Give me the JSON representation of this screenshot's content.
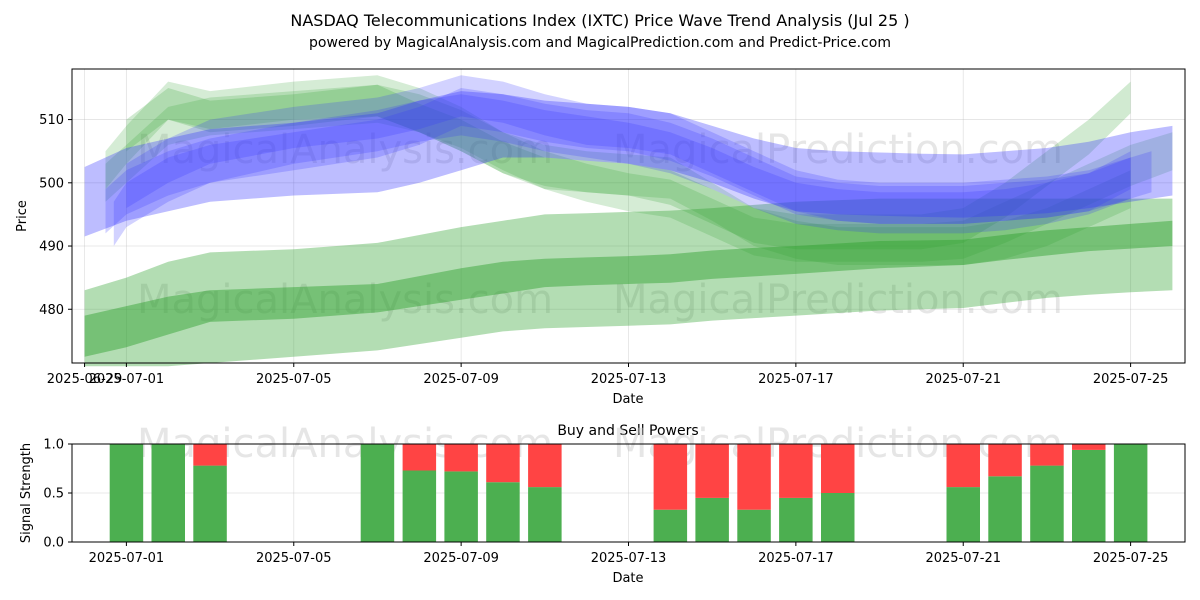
{
  "chart_data": [
    {
      "type": "area",
      "title": "NASDAQ Telecommunications Index (IXTC) Price Wave Trend Analysis (Jul 25 )",
      "subtitle": "powered by MagicalAnalysis.com and MagicalPrediction.com and Predict-Price.com",
      "xlabel": "Date",
      "ylabel": "Price",
      "xlim": [
        -0.3,
        26.3
      ],
      "ylim": [
        471.5,
        518.0
      ],
      "x_ticks": [
        0,
        1,
        5,
        9,
        13,
        17,
        21,
        25
      ],
      "x_tick_labels": [
        "2025-06-29",
        "2025-07-01",
        "2025-07-05",
        "2025-07-09",
        "2025-07-13",
        "2025-07-17",
        "2025-07-21",
        "2025-07-25"
      ],
      "y_ticks": [
        480,
        490,
        500,
        510
      ],
      "grid": true,
      "watermarks": [
        "MagicalAnalysis.com",
        "MagicalPrediction.com",
        "MagicalAnalysis.com",
        "MagicalPrediction.com"
      ],
      "series": [
        {
          "name": "wide-green-channel",
          "color": "#2ca02c",
          "opacity": 0.36,
          "x": [
            0,
            1,
            2,
            3,
            5,
            7,
            9,
            10,
            11,
            12,
            13,
            14,
            15,
            16,
            17,
            19,
            21,
            22,
            23,
            24,
            25,
            26
          ],
          "upper": [
            483,
            485,
            487.5,
            489,
            489.5,
            490.5,
            493,
            494,
            495,
            495.2,
            495.4,
            495.6,
            496,
            496.5,
            497,
            497.5,
            497.5,
            497.5,
            497.5,
            497.5,
            497.5,
            497.5
          ],
          "lower": [
            471,
            471,
            471,
            471.5,
            472.5,
            473.5,
            475.5,
            476.5,
            477,
            477.2,
            477.4,
            477.6,
            478.2,
            478.6,
            479,
            479.8,
            480.2,
            481,
            481.8,
            482.3,
            482.7,
            483
          ]
        },
        {
          "name": "green-trend-band",
          "color": "#2ca02c",
          "opacity": 0.45,
          "x": [
            0,
            1,
            2,
            3,
            5,
            7,
            9,
            10,
            11,
            12,
            13,
            14,
            15,
            16,
            17,
            19,
            21,
            22,
            23,
            24,
            25,
            26
          ],
          "upper": [
            479,
            480.5,
            482,
            483,
            483.5,
            484,
            486.5,
            487.5,
            488,
            488.2,
            488.4,
            488.7,
            489.3,
            489.7,
            490,
            490.8,
            491,
            491.8,
            492.5,
            493,
            493.5,
            494
          ],
          "lower": [
            472.5,
            474,
            476,
            478,
            478.5,
            479.5,
            481.5,
            482.5,
            483.5,
            483.8,
            484,
            484.2,
            484.8,
            485.2,
            485.6,
            486.5,
            487,
            487.8,
            488.5,
            489.2,
            489.6,
            490
          ]
        },
        {
          "name": "green-wave-1",
          "color": "#2ca02c",
          "opacity": 0.2,
          "x": [
            0.5,
            1,
            2,
            3,
            5,
            7,
            8,
            9,
            10,
            11,
            12,
            13,
            14,
            15,
            16,
            17,
            18,
            19,
            20,
            21,
            22,
            23,
            24,
            25
          ],
          "upper": [
            505,
            509,
            516,
            514.5,
            516,
            517,
            515,
            512,
            508,
            506,
            505,
            504.5,
            504,
            500,
            496,
            494,
            493,
            493,
            493,
            493,
            494,
            496,
            499,
            502
          ],
          "lower": [
            499,
            503,
            510,
            508.5,
            510,
            510.5,
            508,
            505,
            501.5,
            499.5,
            498.5,
            498,
            497.5,
            494,
            490,
            488,
            487,
            487,
            487,
            487,
            488,
            490,
            493,
            496
          ]
        },
        {
          "name": "green-wave-2",
          "color": "#2ca02c",
          "opacity": 0.22,
          "x": [
            1,
            2,
            3,
            5,
            7,
            8,
            9,
            10,
            11,
            12,
            13,
            14,
            15,
            16,
            17,
            18,
            19,
            20,
            21,
            22,
            23,
            24,
            25
          ],
          "upper": [
            510,
            515,
            513,
            514,
            515.5,
            512.5,
            510,
            506.5,
            504,
            503.5,
            503,
            502,
            499,
            496,
            495,
            495,
            495,
            495,
            496,
            500,
            505,
            510,
            516
          ],
          "lower": [
            505,
            510,
            508,
            509,
            510.5,
            508,
            505,
            501.5,
            499,
            498.5,
            498,
            496.5,
            493.5,
            490.5,
            489.5,
            489.5,
            489.5,
            489.5,
            490.5,
            494.5,
            499.5,
            504.5,
            511
          ]
        },
        {
          "name": "green-wave-3",
          "color": "#2ca02c",
          "opacity": 0.2,
          "x": [
            0.5,
            1,
            2,
            3,
            5,
            7,
            8,
            9,
            10,
            11,
            12,
            13,
            14,
            15,
            16,
            17,
            18,
            19,
            20,
            21,
            22,
            23,
            24,
            25,
            26
          ],
          "upper": [
            503,
            506,
            512,
            513.5,
            514.5,
            515.5,
            514,
            511.5,
            508,
            505,
            503,
            501.5,
            500.5,
            497.5,
            494.5,
            493.5,
            493.5,
            493.5,
            493.5,
            494,
            497,
            500,
            503,
            506,
            508
          ],
          "lower": [
            497,
            500,
            506,
            507.5,
            508.5,
            509.5,
            508,
            505.5,
            502,
            499,
            497,
            495.5,
            494.5,
            491.5,
            488.5,
            487.5,
            487.5,
            487.5,
            487.5,
            488,
            490.5,
            493.5,
            496.5,
            499.5,
            502
          ]
        },
        {
          "name": "blue-trend-channel",
          "color": "#3333ff",
          "opacity": 0.32,
          "x": [
            0,
            1,
            2,
            3,
            5,
            7,
            8,
            9,
            10,
            11,
            12,
            13,
            14,
            15,
            16,
            17,
            18,
            19,
            20,
            21,
            22,
            23,
            24,
            25,
            26
          ],
          "upper": [
            502.5,
            505.5,
            507,
            508.5,
            509.5,
            511,
            513,
            514.5,
            514,
            513,
            512.5,
            512,
            511,
            509,
            507,
            505.5,
            505,
            504.8,
            504.6,
            504.5,
            505,
            505.5,
            506.5,
            508,
            509
          ],
          "lower": [
            491.5,
            494,
            495.5,
            497,
            498,
            498.5,
            500,
            502,
            504,
            504,
            503.5,
            503,
            502,
            500,
            497.5,
            495.5,
            495,
            494.8,
            494.6,
            494.5,
            494.8,
            495.2,
            496,
            497,
            498
          ]
        },
        {
          "name": "blue-wave-1",
          "color": "#3333ff",
          "opacity": 0.22,
          "x": [
            0.7,
            1,
            2,
            3,
            5,
            7,
            8,
            9,
            10,
            11,
            12,
            13,
            14,
            15,
            16,
            17,
            18,
            19,
            20,
            21,
            22,
            23,
            24,
            25
          ],
          "upper": [
            497,
            500,
            504,
            506,
            508,
            510,
            512,
            515,
            514,
            512.5,
            511.5,
            511,
            509.5,
            507,
            504,
            501,
            500,
            499.5,
            499.5,
            499.5,
            500,
            500.5,
            501.5,
            505
          ],
          "lower": [
            490,
            493,
            497,
            500,
            502,
            504,
            506,
            509,
            508,
            506.5,
            505.5,
            505,
            503.5,
            501,
            498,
            495,
            494,
            493.5,
            493.5,
            493.5,
            494,
            494.5,
            495.5,
            499
          ]
        },
        {
          "name": "blue-wave-2",
          "color": "#3333ff",
          "opacity": 0.22,
          "x": [
            1,
            2,
            3,
            5,
            7,
            8,
            9,
            10,
            11,
            12,
            13,
            14,
            15,
            16,
            17,
            18,
            19,
            20,
            21,
            22,
            23,
            24,
            25
          ],
          "upper": [
            503,
            507,
            510,
            512,
            513.5,
            515,
            517,
            516,
            514,
            512.5,
            512,
            511,
            508,
            505,
            502,
            500.5,
            500,
            500,
            500,
            500.5,
            501,
            502,
            504
          ],
          "lower": [
            496,
            500,
            503,
            505.5,
            507,
            508.5,
            510.5,
            509.5,
            507.5,
            506,
            505.5,
            504.5,
            501.5,
            498.5,
            495.5,
            494,
            493.5,
            493.5,
            493.5,
            494,
            494.5,
            495.5,
            497.5
          ]
        },
        {
          "name": "blue-wave-3",
          "color": "#3333ff",
          "opacity": 0.22,
          "x": [
            0.5,
            1,
            2,
            3,
            5,
            7,
            8,
            9,
            10,
            11,
            12,
            13,
            14,
            15,
            16,
            17,
            18,
            19,
            20,
            21,
            22,
            23,
            24,
            25,
            25.5
          ],
          "upper": [
            499,
            502,
            505,
            507,
            509.5,
            511.5,
            513,
            514,
            513,
            511.5,
            510.5,
            509.5,
            508,
            505.5,
            502.5,
            500,
            499,
            498.5,
            498.5,
            498.5,
            499,
            500,
            501.5,
            504,
            505
          ],
          "lower": [
            492,
            495,
            498,
            500,
            503,
            505,
            506.5,
            507.5,
            506.5,
            505,
            504,
            503,
            501.5,
            499,
            496,
            493.5,
            492.5,
            492,
            492,
            492,
            492.5,
            493.5,
            495,
            497.5,
            498.5
          ]
        }
      ]
    },
    {
      "type": "bar",
      "title": "Buy and Sell Powers",
      "xlabel": "Date",
      "ylabel": "Signal Strength",
      "xlim": [
        -0.3,
        26.3
      ],
      "ylim": [
        0,
        1.0
      ],
      "x_ticks": [
        1,
        5,
        9,
        13,
        17,
        21,
        25
      ],
      "x_tick_labels": [
        "2025-07-01",
        "2025-07-05",
        "2025-07-09",
        "2025-07-13",
        "2025-07-17",
        "2025-07-21",
        "2025-07-25"
      ],
      "y_ticks": [
        0.0,
        0.5,
        1.0
      ],
      "y_tick_labels": [
        "0.0",
        "0.5",
        "1.0"
      ],
      "grid": true,
      "watermarks": [
        "MagicalAnalysis.com",
        "MagicalPrediction.com"
      ],
      "series": [
        {
          "name": "Buy",
          "color": "#4caf50",
          "x": [
            1,
            2,
            3,
            7,
            8,
            9,
            10,
            11,
            14,
            15,
            16,
            17,
            18,
            21,
            22,
            23,
            24,
            25
          ],
          "values": [
            1.0,
            1.0,
            0.78,
            1.0,
            0.73,
            0.72,
            0.61,
            0.56,
            0.33,
            0.45,
            0.33,
            0.45,
            0.5,
            0.56,
            0.67,
            0.78,
            0.94,
            1.0
          ]
        },
        {
          "name": "Sell",
          "color": "#ff4444",
          "x": [
            1,
            2,
            3,
            7,
            8,
            9,
            10,
            11,
            14,
            15,
            16,
            17,
            18,
            21,
            22,
            23,
            24,
            25
          ],
          "values": [
            0.0,
            0.0,
            0.22,
            0.0,
            0.27,
            0.28,
            0.39,
            0.44,
            0.67,
            0.55,
            0.67,
            0.55,
            0.5,
            0.44,
            0.33,
            0.22,
            0.06,
            0.0
          ]
        }
      ]
    }
  ]
}
